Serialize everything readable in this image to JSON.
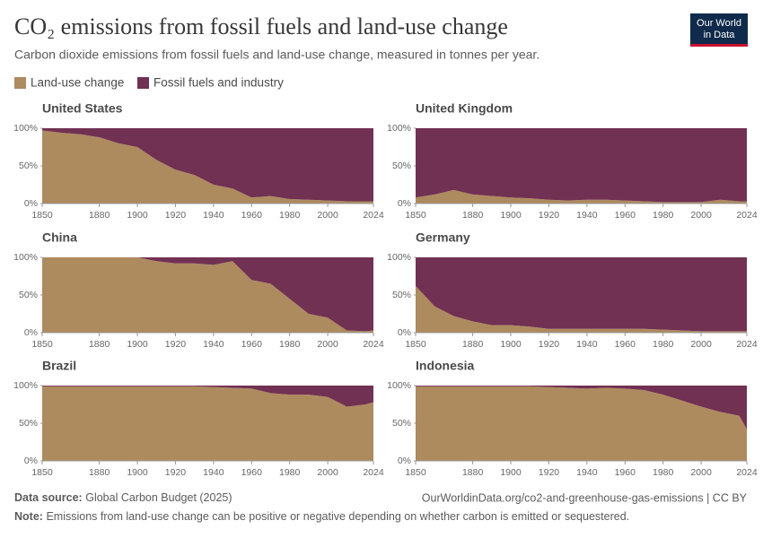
{
  "title": "CO₂ emissions from fossil fuels and land-use change",
  "subtitle": "Carbon dioxide emissions from fossil fuels and land-use change, measured in tonnes per year.",
  "logo": [
    "Our World",
    "in Data"
  ],
  "footer": {
    "source_label": "Data source:",
    "source": "Global Carbon Budget (2025)",
    "url": "OurWorldinData.org/co2-and-greenhouse-gas-emissions | CC BY",
    "note_label": "Note:",
    "note": "Emissions from land-use change can be positive or negative depending on whether carbon is emitted or sequestered."
  },
  "chart_data": [
    {
      "type": "area",
      "stacked": true,
      "title": "United States",
      "x": [
        1850,
        1860,
        1870,
        1880,
        1890,
        1900,
        1910,
        1920,
        1930,
        1940,
        1950,
        1960,
        1970,
        1980,
        1990,
        2000,
        2010,
        2020,
        2024
      ],
      "xlim": [
        1850,
        2024
      ],
      "xticks": [
        1850,
        1880,
        1900,
        1920,
        1940,
        1960,
        1980,
        2000,
        2024
      ],
      "ylim": [
        0,
        100
      ],
      "yticks": [
        {
          "value": 0,
          "label": "0%"
        },
        {
          "value": 50,
          "label": "50%"
        },
        {
          "value": 100,
          "label": "100%"
        }
      ],
      "series": [
        {
          "name": "Land-use change",
          "color": "#ae8a5f",
          "values": [
            97,
            94,
            92,
            88,
            80,
            75,
            58,
            45,
            38,
            25,
            20,
            8,
            10,
            6,
            5,
            4,
            3,
            3,
            3
          ]
        },
        {
          "name": "Fossil fuels and industry",
          "color": "#713152",
          "values": [
            3,
            6,
            8,
            12,
            20,
            25,
            42,
            55,
            62,
            75,
            80,
            92,
            90,
            94,
            95,
            96,
            97,
            97,
            97
          ]
        }
      ]
    },
    {
      "type": "area",
      "stacked": true,
      "title": "United Kingdom",
      "x": [
        1850,
        1860,
        1870,
        1880,
        1890,
        1900,
        1910,
        1920,
        1930,
        1940,
        1950,
        1960,
        1970,
        1980,
        1990,
        2000,
        2010,
        2020,
        2024
      ],
      "xlim": [
        1850,
        2024
      ],
      "xticks": [
        1850,
        1880,
        1900,
        1920,
        1940,
        1960,
        1980,
        2000,
        2024
      ],
      "ylim": [
        0,
        100
      ],
      "yticks": [
        {
          "value": 0,
          "label": "0%"
        },
        {
          "value": 50,
          "label": "50%"
        },
        {
          "value": 100,
          "label": "100%"
        }
      ],
      "series": [
        {
          "name": "Land-use change",
          "color": "#ae8a5f",
          "values": [
            8,
            12,
            18,
            12,
            10,
            8,
            7,
            5,
            4,
            5,
            5,
            4,
            3,
            2,
            2,
            2,
            5,
            3,
            3
          ]
        },
        {
          "name": "Fossil fuels and industry",
          "color": "#713152",
          "values": [
            92,
            88,
            82,
            88,
            90,
            92,
            93,
            95,
            96,
            95,
            95,
            96,
            97,
            98,
            98,
            98,
            95,
            97,
            97
          ]
        }
      ]
    },
    {
      "type": "area",
      "stacked": true,
      "title": "China",
      "x": [
        1850,
        1860,
        1870,
        1880,
        1890,
        1900,
        1910,
        1920,
        1930,
        1940,
        1950,
        1960,
        1970,
        1980,
        1990,
        2000,
        2010,
        2020,
        2024
      ],
      "xlim": [
        1850,
        2024
      ],
      "xticks": [
        1850,
        1880,
        1900,
        1920,
        1940,
        1960,
        1980,
        2000,
        2024
      ],
      "ylim": [
        0,
        100
      ],
      "yticks": [
        {
          "value": 0,
          "label": "0%"
        },
        {
          "value": 50,
          "label": "50%"
        },
        {
          "value": 100,
          "label": "100%"
        }
      ],
      "series": [
        {
          "name": "Land-use change",
          "color": "#ae8a5f",
          "values": [
            100,
            100,
            100,
            100,
            100,
            100,
            95,
            92,
            92,
            90,
            95,
            70,
            65,
            45,
            25,
            20,
            3,
            2,
            3
          ]
        },
        {
          "name": "Fossil fuels and industry",
          "color": "#713152",
          "values": [
            0,
            0,
            0,
            0,
            0,
            0,
            5,
            8,
            8,
            10,
            5,
            30,
            35,
            55,
            75,
            80,
            97,
            98,
            97
          ]
        }
      ]
    },
    {
      "type": "area",
      "stacked": true,
      "title": "Germany",
      "x": [
        1850,
        1860,
        1870,
        1880,
        1890,
        1900,
        1910,
        1920,
        1930,
        1940,
        1950,
        1960,
        1970,
        1980,
        1990,
        2000,
        2010,
        2020,
        2024
      ],
      "xlim": [
        1850,
        2024
      ],
      "xticks": [
        1850,
        1880,
        1900,
        1920,
        1940,
        1960,
        1980,
        2000,
        2024
      ],
      "ylim": [
        0,
        100
      ],
      "yticks": [
        {
          "value": 0,
          "label": "0%"
        },
        {
          "value": 50,
          "label": "50%"
        },
        {
          "value": 100,
          "label": "100%"
        }
      ],
      "series": [
        {
          "name": "Land-use change",
          "color": "#ae8a5f",
          "values": [
            62,
            35,
            22,
            15,
            10,
            10,
            8,
            5,
            5,
            5,
            5,
            5,
            5,
            4,
            3,
            2,
            2,
            2,
            2
          ]
        },
        {
          "name": "Fossil fuels and industry",
          "color": "#713152",
          "values": [
            38,
            65,
            78,
            85,
            90,
            90,
            92,
            95,
            95,
            95,
            95,
            95,
            95,
            96,
            97,
            98,
            98,
            98,
            98
          ]
        }
      ]
    },
    {
      "type": "area",
      "stacked": true,
      "title": "Brazil",
      "x": [
        1850,
        1860,
        1870,
        1880,
        1890,
        1900,
        1910,
        1920,
        1930,
        1940,
        1950,
        1960,
        1970,
        1980,
        1990,
        2000,
        2010,
        2020,
        2024
      ],
      "xlim": [
        1850,
        2024
      ],
      "xticks": [
        1850,
        1880,
        1900,
        1920,
        1940,
        1960,
        1980,
        2000,
        2024
      ],
      "ylim": [
        0,
        100
      ],
      "yticks": [
        {
          "value": 0,
          "label": "0%"
        },
        {
          "value": 50,
          "label": "50%"
        },
        {
          "value": 100,
          "label": "100%"
        }
      ],
      "series": [
        {
          "name": "Land-use change",
          "color": "#ae8a5f",
          "values": [
            99,
            99,
            99,
            99,
            99,
            99,
            99,
            99,
            99,
            98,
            97,
            96,
            90,
            88,
            88,
            85,
            72,
            75,
            78
          ]
        },
        {
          "name": "Fossil fuels and industry",
          "color": "#713152",
          "values": [
            1,
            1,
            1,
            1,
            1,
            1,
            1,
            1,
            1,
            2,
            3,
            4,
            10,
            12,
            12,
            15,
            28,
            25,
            22
          ]
        }
      ]
    },
    {
      "type": "area",
      "stacked": true,
      "title": "Indonesia",
      "x": [
        1850,
        1860,
        1870,
        1880,
        1890,
        1900,
        1910,
        1920,
        1930,
        1940,
        1950,
        1960,
        1970,
        1980,
        1990,
        2000,
        2010,
        2020,
        2024
      ],
      "xlim": [
        1850,
        2024
      ],
      "xticks": [
        1850,
        1880,
        1900,
        1920,
        1940,
        1960,
        1980,
        2000,
        2024
      ],
      "ylim": [
        0,
        100
      ],
      "yticks": [
        {
          "value": 0,
          "label": "0%"
        },
        {
          "value": 50,
          "label": "50%"
        },
        {
          "value": 100,
          "label": "100%"
        }
      ],
      "series": [
        {
          "name": "Land-use change",
          "color": "#ae8a5f",
          "values": [
            99,
            99,
            99,
            99,
            99,
            99,
            99,
            98,
            97,
            96,
            97,
            96,
            94,
            88,
            80,
            72,
            65,
            60,
            42
          ]
        },
        {
          "name": "Fossil fuels and industry",
          "color": "#713152",
          "values": [
            1,
            1,
            1,
            1,
            1,
            1,
            1,
            2,
            3,
            4,
            3,
            4,
            6,
            12,
            20,
            28,
            35,
            40,
            58
          ]
        }
      ]
    }
  ]
}
